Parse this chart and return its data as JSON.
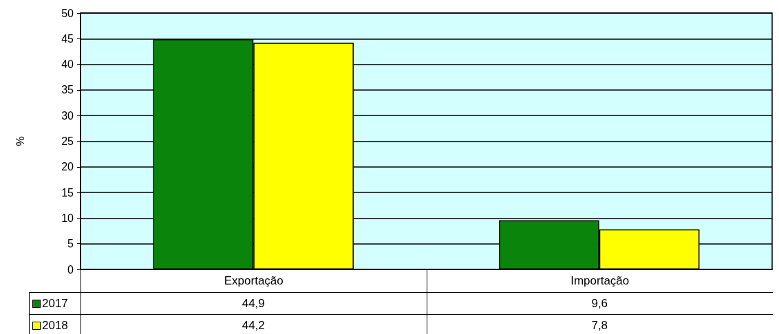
{
  "chart_data": {
    "type": "bar",
    "ylabel": "%",
    "categories": [
      "Exportação",
      "Importação"
    ],
    "series": [
      {
        "name": "2017",
        "color": "#0a840a",
        "values": [
          44.9,
          9.6
        ],
        "value_labels": [
          "44,9",
          "9,6"
        ]
      },
      {
        "name": "2018",
        "color": "#ffff00",
        "values": [
          44.2,
          7.8
        ],
        "value_labels": [
          "44,2",
          "7,8"
        ]
      }
    ],
    "ylim": [
      0,
      50
    ],
    "yticks": [
      0,
      5,
      10,
      15,
      20,
      25,
      30,
      35,
      40,
      45,
      50
    ],
    "grid": true,
    "legend": "bottom"
  }
}
